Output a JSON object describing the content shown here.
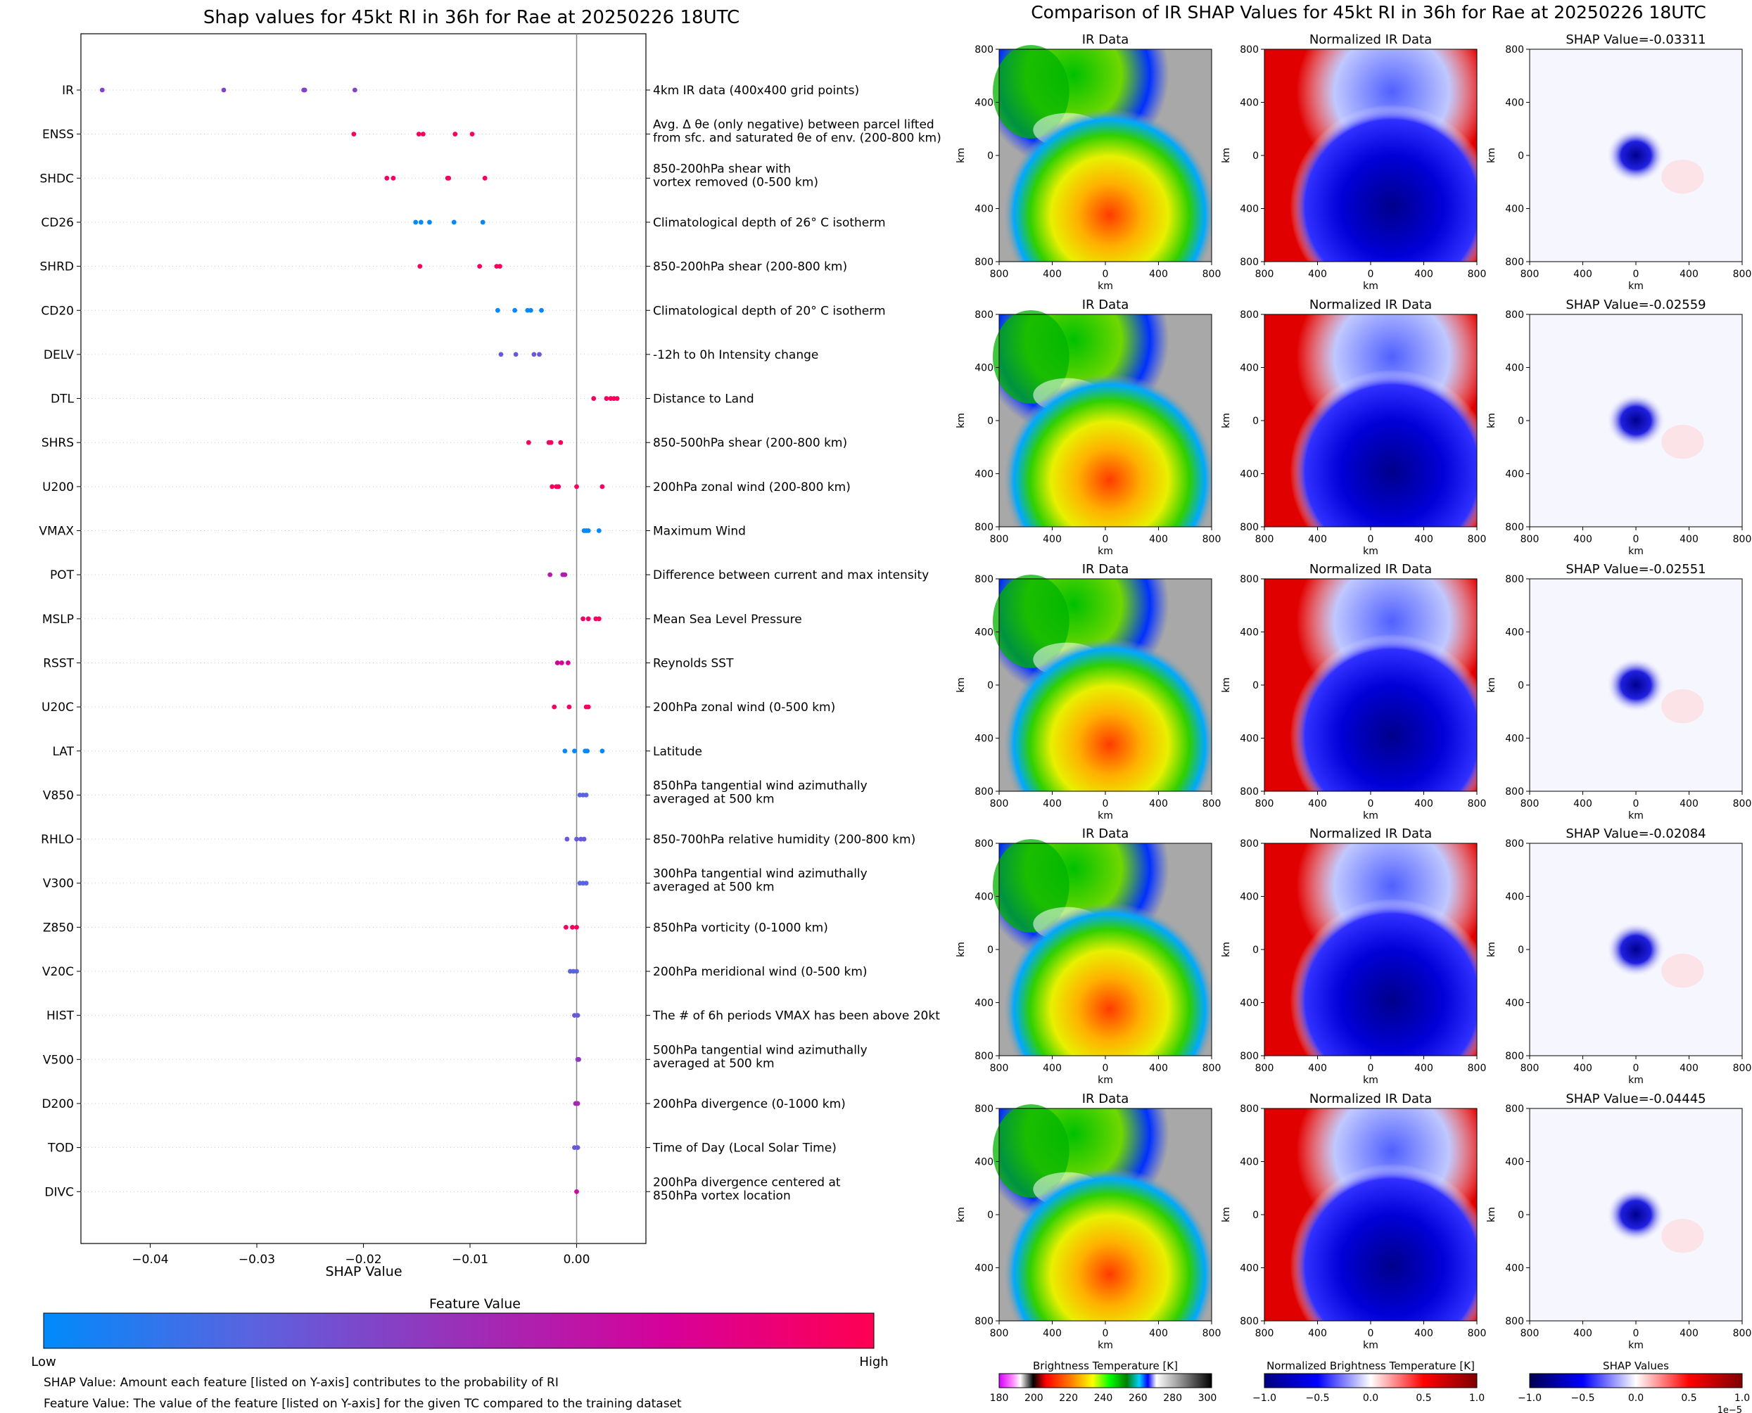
{
  "chart_data": [
    {
      "type": "scatter",
      "subtype": "shap-beeswarm",
      "title": "Shap values for 45kt RI in 36h for Rae at 20250226 18UTC",
      "xlabel": "SHAP Value",
      "xlim": [
        -0.0465,
        0.0065
      ],
      "xticks": [
        -0.04,
        -0.03,
        -0.02,
        -0.01,
        0.0
      ],
      "xtick_labels": [
        "−0.04",
        "−0.03",
        "−0.02",
        "−0.01",
        "0.00"
      ],
      "colorbar": {
        "title": "Feature Value",
        "low_label": "Low",
        "high_label": "High",
        "colors": [
          "#008bfb",
          "#5a63e0",
          "#9a30b8",
          "#d6019a",
          "#ff0052"
        ]
      },
      "footnotes": [
        "SHAP Value: Amount each feature [listed on Y-axis] contributes to the probability of RI",
        "Feature Value: The value of the feature [listed on Y-axis] for the given TC compared to the training dataset"
      ],
      "features": [
        {
          "name": "IR",
          "description": [
            "4km IR data (400x400 grid points)"
          ],
          "values": [
            -0.0445,
            -0.0331,
            -0.0256,
            -0.0255,
            -0.0208
          ],
          "color": 0.4
        },
        {
          "name": "ENSS",
          "description": [
            "Avg. Δ θe (only negative) between parcel lifted",
            "from sfc. and saturated θe of env. (200-800 km)"
          ],
          "values": [
            -0.0209,
            -0.0148,
            -0.0144,
            -0.0114,
            -0.0098
          ],
          "color": 0.95
        },
        {
          "name": "SHDC",
          "description": [
            "850-200hPa shear with",
            "vortex removed (0-500 km)"
          ],
          "values": [
            -0.0178,
            -0.0172,
            -0.0121,
            -0.012,
            -0.0086
          ],
          "color": 0.95
        },
        {
          "name": "CD26",
          "description": [
            "Climatological depth of 26° C isotherm"
          ],
          "values": [
            -0.0151,
            -0.0146,
            -0.0138,
            -0.0115,
            -0.0088
          ],
          "color": 0.02
        },
        {
          "name": "SHRD",
          "description": [
            "850-200hPa shear (200-800 km)"
          ],
          "values": [
            -0.0147,
            -0.0091,
            -0.0075,
            -0.0072
          ],
          "color": 0.95
        },
        {
          "name": "CD20",
          "description": [
            "Climatological depth of 20° C isotherm"
          ],
          "values": [
            -0.0074,
            -0.0058,
            -0.0046,
            -0.0043,
            -0.0033
          ],
          "color": 0.02
        },
        {
          "name": "DELV",
          "description": [
            "-12h to 0h Intensity change"
          ],
          "values": [
            -0.0071,
            -0.0057,
            -0.004,
            -0.0035
          ],
          "color": 0.3
        },
        {
          "name": "DTL",
          "description": [
            "Distance to Land"
          ],
          "values": [
            0.0016,
            0.0028,
            0.0032,
            0.0035,
            0.0038
          ],
          "color": 0.95
        },
        {
          "name": "SHRS",
          "description": [
            "850-500hPa shear (200-800 km)"
          ],
          "values": [
            -0.0045,
            -0.0026,
            -0.0024,
            -0.0015
          ],
          "color": 0.95
        },
        {
          "name": "U200",
          "description": [
            "200hPa zonal wind (200-800 km)"
          ],
          "values": [
            -0.0023,
            -0.0019,
            -0.0017,
            0.0,
            0.0024
          ],
          "color": 0.95
        },
        {
          "name": "VMAX",
          "description": [
            "Maximum Wind"
          ],
          "values": [
            0.0007,
            0.0009,
            0.0011,
            0.0021
          ],
          "color": 0.02
        },
        {
          "name": "POT",
          "description": [
            "Difference between current and max intensity"
          ],
          "values": [
            -0.0025,
            -0.0013,
            -0.0011
          ],
          "color": 0.6
        },
        {
          "name": "MSLP",
          "description": [
            "Mean Sea Level Pressure"
          ],
          "values": [
            0.0006,
            0.0011,
            0.0018,
            0.0021
          ],
          "color": 0.95
        },
        {
          "name": "RSST",
          "description": [
            "Reynolds SST"
          ],
          "values": [
            -0.0018,
            -0.0014,
            -0.0008
          ],
          "color": 0.75
        },
        {
          "name": "U20C",
          "description": [
            "200hPa zonal wind (0-500 km)"
          ],
          "values": [
            -0.0021,
            -0.0007,
            0.0009,
            0.0011
          ],
          "color": 0.95
        },
        {
          "name": "LAT",
          "description": [
            "Latitude"
          ],
          "values": [
            -0.0011,
            -0.0002,
            0.0008,
            0.001,
            0.0024
          ],
          "color": 0.02
        },
        {
          "name": "V850",
          "description": [
            "850hPa tangential wind azimuthally",
            "averaged at 500 km"
          ],
          "values": [
            0.0003,
            0.0006,
            0.0009
          ],
          "color": 0.25
        },
        {
          "name": "RHLO",
          "description": [
            "850-700hPa relative humidity (200-800 km)"
          ],
          "values": [
            -0.0009,
            0.0,
            0.0004,
            0.0007
          ],
          "color": 0.3
        },
        {
          "name": "V300",
          "description": [
            "300hPa tangential wind azimuthally",
            "averaged at 500 km"
          ],
          "values": [
            0.0003,
            0.0006,
            0.0009
          ],
          "color": 0.25
        },
        {
          "name": "Z850",
          "description": [
            "850hPa vorticity (0-1000 km)"
          ],
          "values": [
            -0.001,
            -0.0004,
            0.0
          ],
          "color": 0.95
        },
        {
          "name": "V20C",
          "description": [
            "200hPa meridional wind (0-500 km)"
          ],
          "values": [
            -0.0006,
            -0.0003,
            0.0
          ],
          "color": 0.25
        },
        {
          "name": "HIST",
          "description": [
            "The # of 6h periods VMAX has been above 20kt"
          ],
          "values": [
            -0.0002,
            0.0001
          ],
          "color": 0.3
        },
        {
          "name": "V500",
          "description": [
            "500hPa tangential wind azimuthally",
            "averaged at 500 km"
          ],
          "values": [
            0.0001,
            0.0002
          ],
          "color": 0.45
        },
        {
          "name": "D200",
          "description": [
            "200hPa divergence (0-1000 km)"
          ],
          "values": [
            -0.0001,
            0.0001
          ],
          "color": 0.55
        },
        {
          "name": "TOD",
          "description": [
            "Time of Day (Local Solar Time)"
          ],
          "values": [
            -0.0002,
            0.0001
          ],
          "color": 0.3
        },
        {
          "name": "DIVC",
          "description": [
            "200hPa divergence centered at",
            "850hPa vortex location"
          ],
          "values": [
            0.0
          ],
          "color": 0.7
        }
      ]
    },
    {
      "type": "heatmap",
      "title": "Comparison of IR SHAP Values for 45kt RI in 36h for Rae at 20250226 18UTC",
      "column_titles": [
        "IR Data",
        "Normalized IR Data"
      ],
      "shap_titles": [
        "SHAP Value=-0.03311",
        "SHAP Value=-0.02559",
        "SHAP Value=-0.02551",
        "SHAP Value=-0.02084",
        "SHAP Value=-0.04445"
      ],
      "axis_label": "km",
      "tick_labels": [
        "800",
        "400",
        "0",
        "400",
        "800"
      ],
      "colorbars": [
        {
          "title": "Brightness Temperature [K]",
          "ticks": [
            "180",
            "200",
            "220",
            "240",
            "260",
            "280",
            "300"
          ]
        },
        {
          "title": "Normalized Brightness Temperature [K]",
          "ticks": [
            "−1.0",
            "−0.5",
            "0.0",
            "0.5",
            "1.0"
          ]
        },
        {
          "title": "SHAP Values",
          "ticks": [
            "−1.0",
            "−0.5",
            "0.0",
            "0.5",
            "1.0"
          ],
          "offset_label": "1e−5"
        }
      ]
    }
  ]
}
